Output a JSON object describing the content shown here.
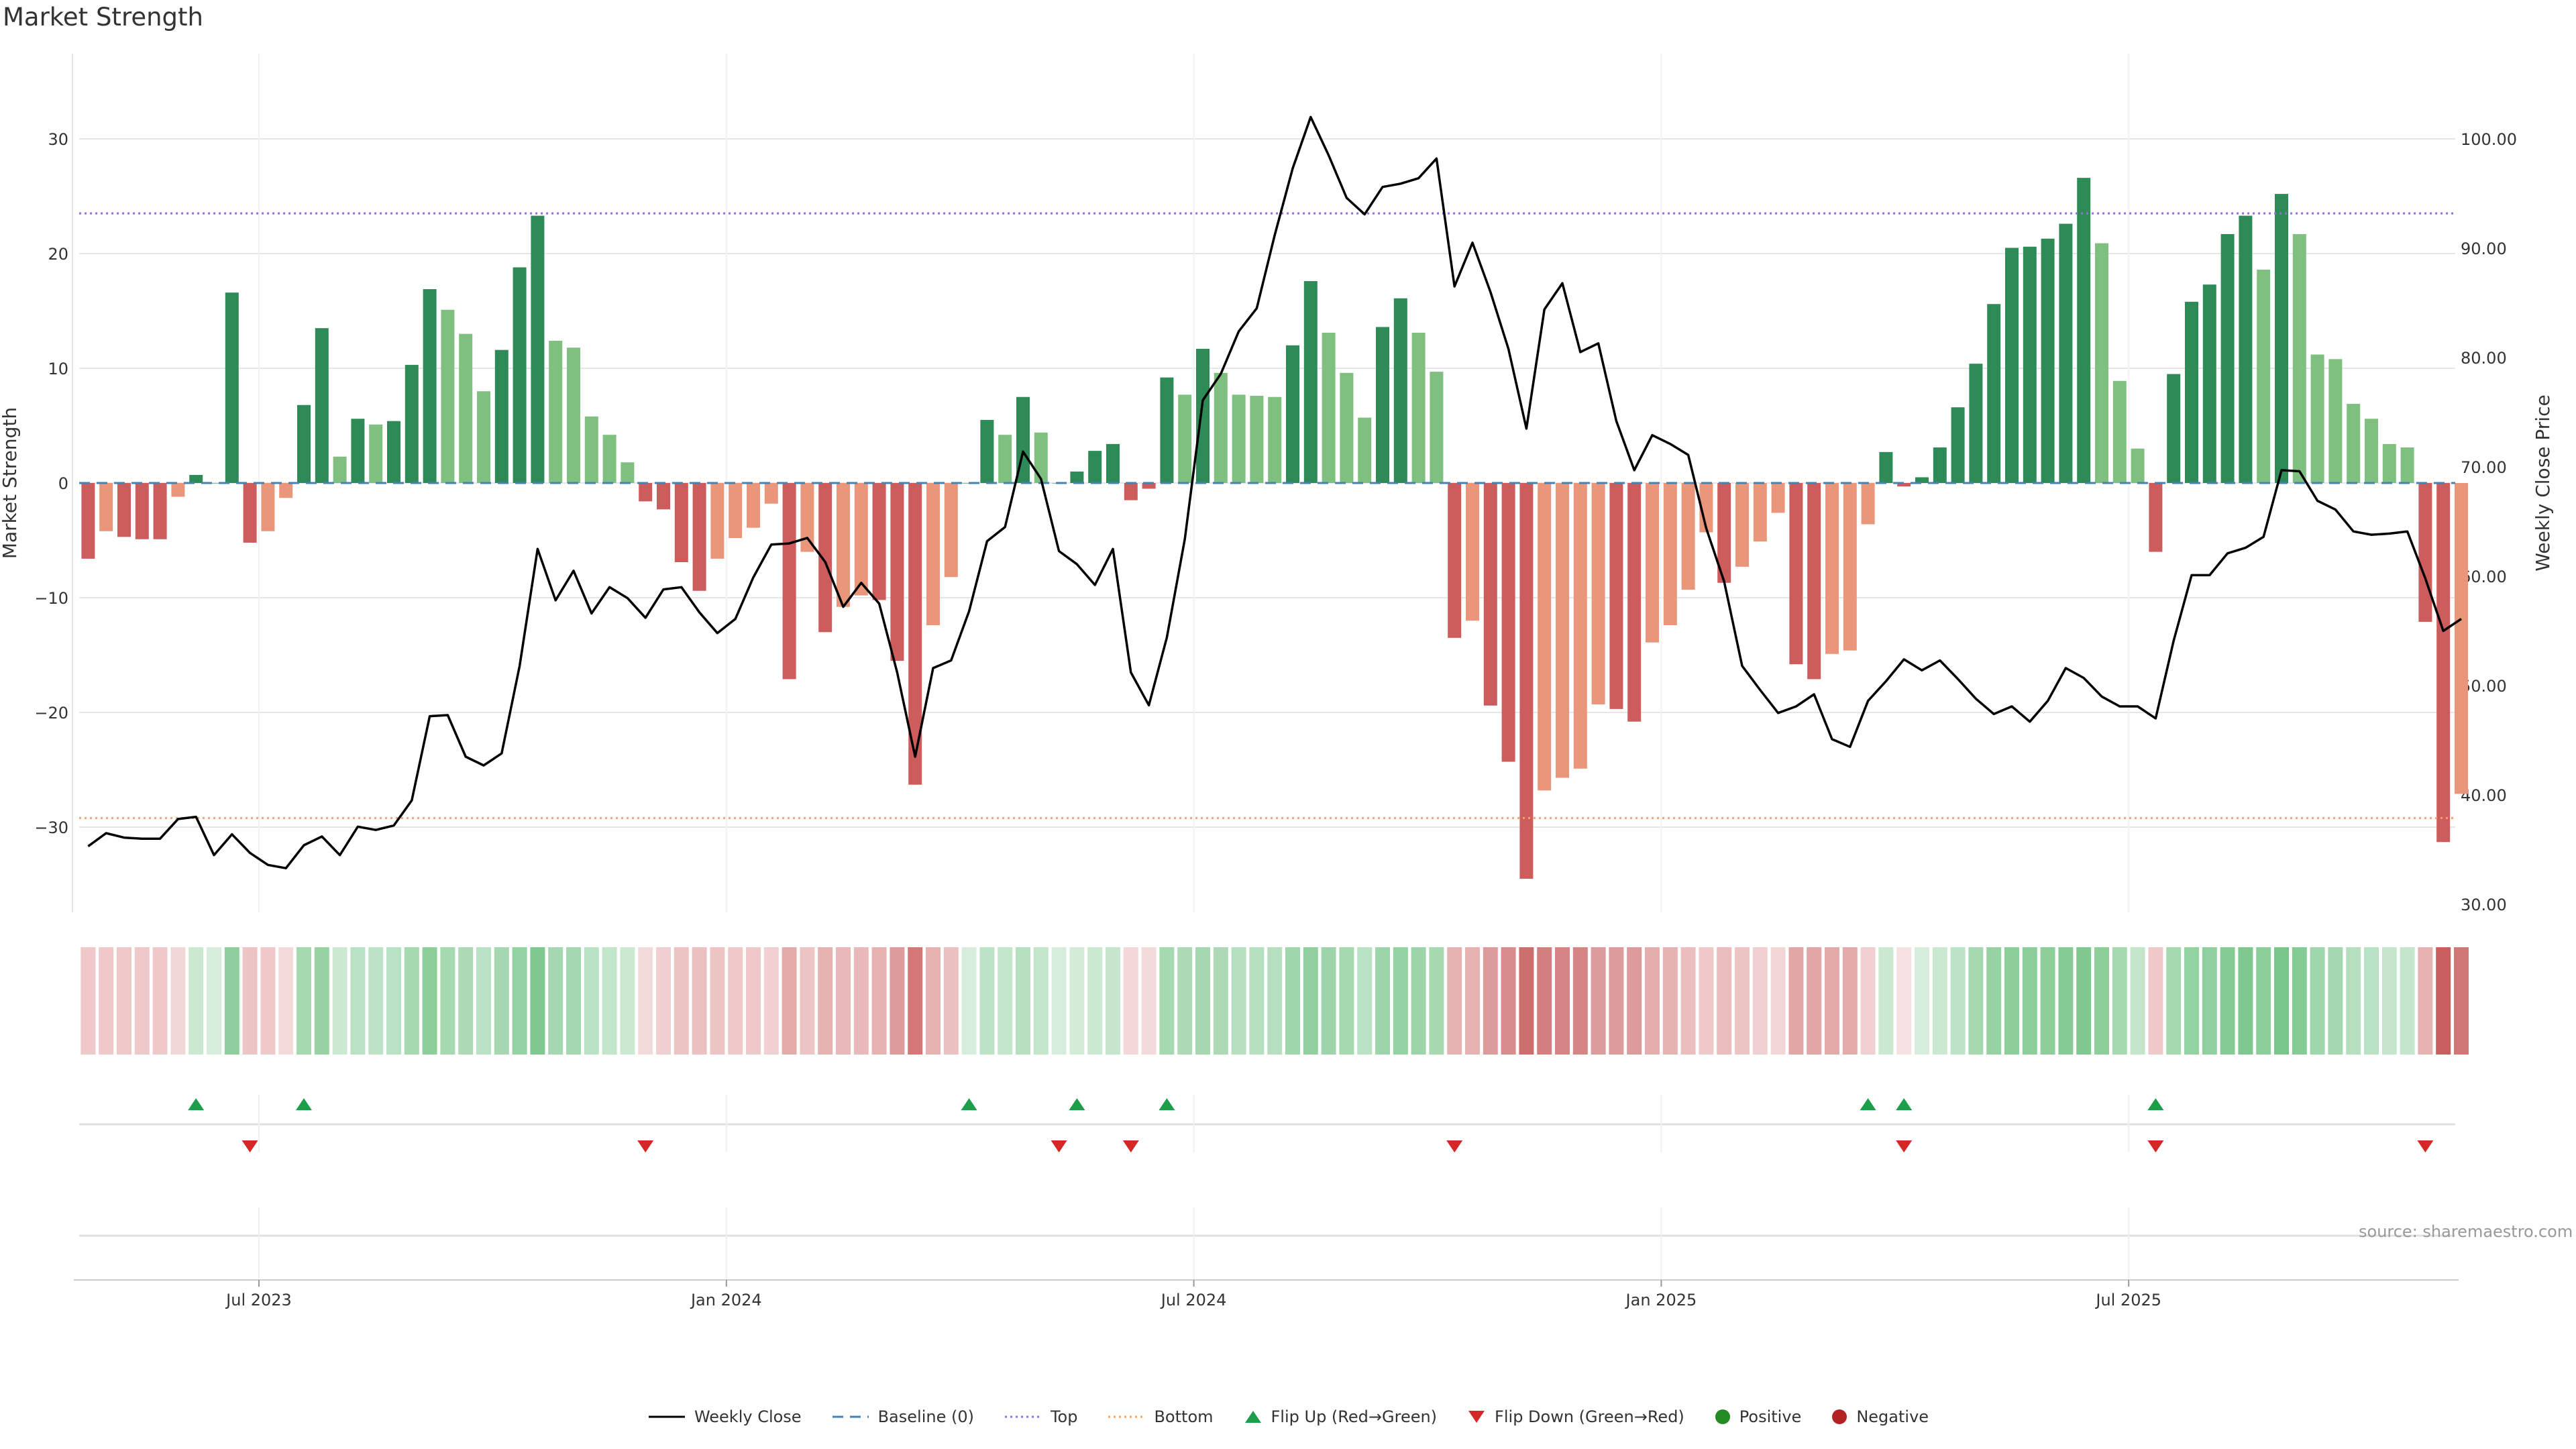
{
  "title": "Market Strength",
  "source": "source: sharemaestro.com",
  "colors": {
    "strong_pos": "#2e8b57",
    "weak_pos": "#7fbf7f",
    "strong_neg": "#cd5c5c",
    "weak_neg": "#e9967a",
    "close": "#000000",
    "baseline": "#4682b4",
    "top": "#9370db",
    "bottom": "#f4a460",
    "flip_up": "#1e9e4a",
    "flip_down": "#d62728",
    "grid": "#e6e6e6"
  },
  "chart_data": {
    "type": "bar",
    "title": "Market Strength",
    "ylabel": "Market Strength",
    "y2label": "Weekly Close Price",
    "ylim": [
      -37,
      38
    ],
    "y2lim": [
      28,
      108
    ],
    "yticks": [
      "−30",
      "−20",
      "−10",
      "0",
      "10",
      "20",
      "30"
    ],
    "y2ticks": [
      "30.00",
      "40.00",
      "50.00",
      "60.00",
      "70.00",
      "80.00",
      "90.00",
      "100.00"
    ],
    "xticks": [
      {
        "label": "Jul 2023",
        "week": 10
      },
      {
        "label": "Jan 2024",
        "week": 36
      },
      {
        "label": "Jul 2024",
        "week": 62
      },
      {
        "label": "Jan 2025",
        "week": 88
      },
      {
        "label": "Jul 2025",
        "week": 114
      }
    ],
    "top_level": 23.5,
    "bottom_level": -29.2,
    "grid": true,
    "strength": [
      -6.6,
      -4.2,
      -4.7,
      -4.9,
      -4.9,
      -1.2,
      0.7,
      0,
      16.6,
      -5.2,
      -4.2,
      -1.3,
      6.8,
      13.5,
      2.3,
      5.6,
      5.1,
      5.4,
      10.3,
      16.9,
      15.1,
      13,
      8,
      11.6,
      18.8,
      23.3,
      12.4,
      11.8,
      5.8,
      4.2,
      1.8,
      -1.6,
      -2.3,
      -6.9,
      -9.4,
      -6.6,
      -4.8,
      -3.9,
      -1.8,
      -17.1,
      -6,
      -13,
      -10.8,
      -9.8,
      -10.2,
      -15.5,
      -26.3,
      -12.4,
      -8.2,
      0,
      5.5,
      4.2,
      7.5,
      4.4,
      0,
      1,
      2.8,
      3.4,
      -1.5,
      -0.5,
      9.2,
      7.7,
      11.7,
      9.6,
      7.7,
      7.6,
      7.5,
      12,
      17.6,
      13.1,
      9.6,
      5.7,
      13.6,
      16.1,
      13.1,
      9.7,
      -13.5,
      -12,
      -19.4,
      -24.3,
      -34.5,
      -26.8,
      -25.7,
      -24.9,
      -19.3,
      -19.7,
      -20.8,
      -13.9,
      -12.4,
      -9.3,
      -4.3,
      -8.7,
      -7.3,
      -5.1,
      -2.6,
      -15.8,
      -17.1,
      -14.9,
      -14.6,
      -3.6,
      2.7,
      -0.3,
      0.5,
      3.1,
      6.6,
      10.4,
      15.6,
      20.5,
      20.6,
      21.3,
      22.6,
      26.6,
      20.9,
      8.9,
      3,
      -6,
      9.5,
      15.8,
      17.3,
      21.7,
      23.3,
      18.6,
      25.2,
      21.7,
      11.2,
      10.8,
      6.9,
      5.6,
      3.4,
      3.1,
      -12.1,
      -31.3,
      -27.1
    ],
    "strength_type": [
      "sn",
      "wn",
      "sn",
      "sn",
      "sn",
      "wn",
      "sp",
      "sp",
      "sp",
      "sn",
      "wn",
      "wn",
      "sp",
      "sp",
      "wp",
      "sp",
      "wp",
      "sp",
      "sp",
      "sp",
      "wp",
      "wp",
      "wp",
      "sp",
      "sp",
      "sp",
      "wp",
      "wp",
      "wp",
      "wp",
      "wp",
      "sn",
      "sn",
      "sn",
      "sn",
      "wn",
      "wn",
      "wn",
      "wn",
      "sn",
      "wn",
      "sn",
      "wn",
      "wn",
      "sn",
      "sn",
      "sn",
      "wn",
      "wn",
      "sp",
      "sp",
      "wp",
      "sp",
      "wp",
      "sp",
      "sp",
      "sp",
      "sp",
      "sn",
      "sn",
      "sp",
      "wp",
      "sp",
      "wp",
      "wp",
      "wp",
      "wp",
      "sp",
      "sp",
      "wp",
      "wp",
      "wp",
      "sp",
      "sp",
      "wp",
      "wp",
      "sn",
      "wn",
      "sn",
      "sn",
      "sn",
      "wn",
      "wn",
      "wn",
      "wn",
      "sn",
      "sn",
      "wn",
      "wn",
      "wn",
      "wn",
      "sn",
      "wn",
      "wn",
      "wn",
      "sn",
      "sn",
      "wn",
      "wn",
      "wn",
      "sp",
      "sn",
      "sp",
      "sp",
      "sp",
      "sp",
      "sp",
      "sp",
      "sp",
      "sp",
      "sp",
      "sp",
      "wp",
      "wp",
      "wp",
      "sn",
      "sp",
      "sp",
      "sp",
      "sp",
      "sp",
      "wp",
      "sp",
      "wp",
      "wp",
      "wp",
      "wp",
      "wp",
      "wp",
      "wp",
      "sn",
      "sn",
      "wn"
    ],
    "weekly_close": [
      35.3,
      36.5,
      36.1,
      36,
      36,
      37.8,
      38,
      34.5,
      36.4,
      34.7,
      33.6,
      33.3,
      35.4,
      36.2,
      34.5,
      37.1,
      36.8,
      37.2,
      39.5,
      47.2,
      47.3,
      43.5,
      42.7,
      43.8,
      51.8,
      62.5,
      57.8,
      60.5,
      56.6,
      59,
      58,
      56.2,
      58.8,
      59,
      56.7,
      54.8,
      56.1,
      59.9,
      62.9,
      63,
      63.5,
      61.3,
      57.2,
      59.4,
      57.5,
      51.2,
      43.5,
      51.6,
      52.3,
      56.8,
      63.2,
      64.5,
      71.4,
      68.9,
      62.3,
      61.1,
      59.2,
      62.5,
      51.2,
      48.2,
      54.4,
      63.4,
      76.1,
      78.5,
      82.4,
      84.5,
      91.2,
      97.3,
      102,
      98.5,
      94.6,
      93.1,
      95.6,
      95.9,
      96.4,
      98.2,
      86.5,
      90.5,
      86,
      80.8,
      73.5,
      84.4,
      86.8,
      80.5,
      81.3,
      74.2,
      69.7,
      72.9,
      72.1,
      71.1,
      64.4,
      59.5,
      51.8,
      49.6,
      47.5,
      48.1,
      49.2,
      45.1,
      44.4,
      48.6,
      50.4,
      52.4,
      51.4,
      52.3,
      50.6,
      48.8,
      47.4,
      48.1,
      46.7,
      48.6,
      51.6,
      50.7,
      49,
      48.1,
      48.1,
      47,
      54.1,
      60.1,
      60.1,
      62.1,
      62.6,
      63.6,
      69.7,
      69.6,
      66.9,
      66.1,
      64.1,
      63.8,
      63.9,
      64.1,
      59.8,
      55,
      56.1
    ],
    "heat_strip": [
      "#efc9c9",
      "#efc9c9",
      "#efc9c9",
      "#efc9c9",
      "#efc9c9",
      "#f0d8d8",
      "#cbe9d1",
      "#d5edda",
      "#90cf9d",
      "#edc4c4",
      "#efc9c9",
      "#f3dada",
      "#a7d9b1",
      "#97d2a3",
      "#cbe9d1",
      "#b9e1c3",
      "#bde3c6",
      "#b9e1c3",
      "#a7d9b1",
      "#8dcf9b",
      "#a7d9b1",
      "#add9b6",
      "#b9e1c3",
      "#a5d8b0",
      "#93d2a1",
      "#7fc88f",
      "#a5d8b0",
      "#a5d8b0",
      "#b9e1c3",
      "#c3e6cb",
      "#cbe9d1",
      "#f3dada",
      "#efcfcf",
      "#edc4c4",
      "#ebc0c0",
      "#edc4c4",
      "#efc9c9",
      "#efc9c9",
      "#f0d0d0",
      "#e4abab",
      "#edc4c4",
      "#e6b2b2",
      "#e9b9b9",
      "#e9b9b9",
      "#e6b2b2",
      "#dd9c9c",
      "#d47777",
      "#e6b2b2",
      "#ebc0c0",
      "#d5edda",
      "#bde3c6",
      "#c3e6cb",
      "#b5dfbf",
      "#c3e6cb",
      "#d5edda",
      "#d3ecd8",
      "#cbe9d1",
      "#c5e6cc",
      "#f2d8d8",
      "#f3dada",
      "#a7d9b1",
      "#add9b6",
      "#a5d8b0",
      "#add9b6",
      "#b5dfbf",
      "#b5dfbf",
      "#b5dfbf",
      "#a0d6ab",
      "#91cf9f",
      "#9dd4a9",
      "#a7d9b1",
      "#b9e1c3",
      "#9dd4a9",
      "#93d2a1",
      "#9dd4a9",
      "#a7d9b1",
      "#e6b2b2",
      "#e6b2b2",
      "#dd9c9c",
      "#d68c8c",
      "#cc6e6e",
      "#d47f7f",
      "#d58383",
      "#d68585",
      "#dd9c9c",
      "#dd9c9c",
      "#dd9a9a",
      "#e4aeae",
      "#e6b2b2",
      "#ebbdbd",
      "#efc9c9",
      "#ebbdbd",
      "#edc4c4",
      "#f0d0d0",
      "#f2d6d6",
      "#e2a6a6",
      "#e2a6a6",
      "#e3aaaa",
      "#e4abab",
      "#f0d0d0",
      "#cbe9d1",
      "#f5e1e1",
      "#d5edda",
      "#cbe9d1",
      "#bde3c6",
      "#a7d9b1",
      "#97d2a3",
      "#8dcf9b",
      "#8dcf9b",
      "#8dcf9b",
      "#85cb95",
      "#7fc88f",
      "#8dcf9b",
      "#a7d9b1",
      "#c3e6cb",
      "#efc9c9",
      "#a7d9b1",
      "#93d2a1",
      "#91cf9f",
      "#85cb95",
      "#7fc88f",
      "#8dcf9b",
      "#79c68a",
      "#85cb95",
      "#a0d6ab",
      "#a5d8b0",
      "#b5dfbf",
      "#b9e1c3",
      "#c5e6cc",
      "#c5e6cc",
      "#e6b2b2",
      "#c85f5f",
      "#d07777"
    ],
    "flip_up_weeks": [
      6,
      12,
      49,
      55,
      60,
      99,
      101,
      115
    ],
    "flip_down_weeks": [
      9,
      31,
      54,
      58,
      76,
      101,
      115,
      130
    ]
  },
  "legend": [
    {
      "key": "close",
      "label": "Weekly Close"
    },
    {
      "key": "baseline",
      "label": "Baseline (0)"
    },
    {
      "key": "top",
      "label": "Top"
    },
    {
      "key": "bottom",
      "label": "Bottom"
    },
    {
      "key": "flip_up",
      "label": "Flip Up (Red→Green)"
    },
    {
      "key": "flip_down",
      "label": "Flip Down (Green→Red)"
    },
    {
      "key": "positive",
      "label": "Positive"
    },
    {
      "key": "negative",
      "label": "Negative"
    }
  ]
}
